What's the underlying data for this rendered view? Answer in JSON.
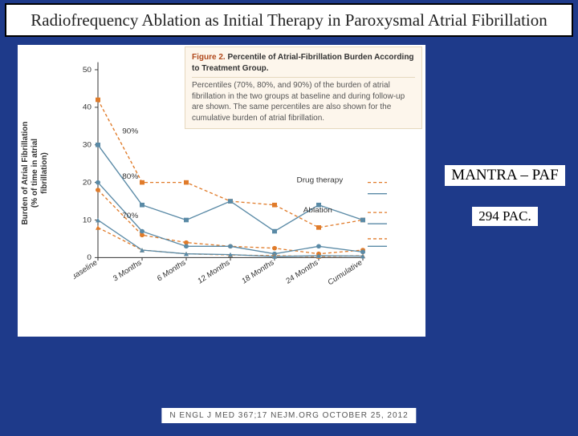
{
  "title": "Radiofrequency Ablation as Initial Therapy in Paroxysmal Atrial Fibrillation",
  "caption": {
    "fig_label": "Figure 2.",
    "fig_title": "Percentile of Atrial-Fibrillation Burden According to Treatment Group.",
    "body": "Percentiles (70%, 80%, and 90%) of the burden of atrial fibrillation in the two groups at baseline and during follow-up are shown. The same percentiles are also shown for the cumulative burden of atrial fibrillation."
  },
  "side": {
    "label1": "MANTRA – PAF",
    "label2": "294 PAC."
  },
  "citation": "N ENGL J MED 367;17   NEJM.ORG   OCTOBER 25, 2012",
  "chart": {
    "type": "line",
    "y_label": "Burden of Atrial Fibrillation\n(% of time in atrial fibrillation)",
    "y_ticks": [
      0,
      10,
      20,
      30,
      40,
      50
    ],
    "ylim": [
      0,
      52
    ],
    "x_categories": [
      "Baseline",
      "3 Months",
      "6 Months",
      "12 Months",
      "18 Months",
      "24 Months",
      "Cumulative"
    ],
    "background_color": "#ffffff",
    "axis_color": "#333333",
    "text_color": "#333333",
    "tick_fontsize": 10,
    "label_fontsize": 10,
    "marker_size": 6,
    "line_width": 1.4,
    "palette": {
      "drug": "#e07b2a",
      "ablation": "#5a8aa6"
    },
    "percentile_annotations": [
      {
        "text": "90%",
        "x_idx": 0.55,
        "y": 33
      },
      {
        "text": "80%",
        "x_idx": 0.55,
        "y": 21
      },
      {
        "text": "70%",
        "x_idx": 0.55,
        "y": 10.5
      }
    ],
    "legend_items": [
      {
        "label": "Drug therapy",
        "x_idx": 4.5,
        "y": 20,
        "color": "#e07b2a",
        "marker": "square"
      },
      {
        "label": "Ablation",
        "x_idx": 4.65,
        "y": 12,
        "color": "#5a8aa6",
        "marker": "square"
      }
    ],
    "series": [
      {
        "name": "Drug 90%",
        "group": "drug",
        "percentile": 90,
        "dash": "4 3",
        "color": "#e07b2a",
        "marker": "square",
        "values": [
          42,
          20,
          20,
          15,
          14,
          8,
          10
        ]
      },
      {
        "name": "Ablation 90%",
        "group": "ablation",
        "percentile": 90,
        "dash": "none",
        "color": "#5a8aa6",
        "marker": "square",
        "values": [
          30,
          14,
          10,
          15,
          7,
          14,
          10
        ]
      },
      {
        "name": "Drug 80%",
        "group": "drug",
        "percentile": 80,
        "dash": "4 3",
        "color": "#e07b2a",
        "marker": "circle",
        "values": [
          18,
          6,
          4,
          3,
          2.5,
          1,
          2
        ]
      },
      {
        "name": "Ablation 80%",
        "group": "ablation",
        "percentile": 80,
        "dash": "none",
        "color": "#5a8aa6",
        "marker": "circle",
        "values": [
          20,
          7,
          3,
          3,
          1,
          3,
          1.5
        ]
      },
      {
        "name": "Drug 70%",
        "group": "drug",
        "percentile": 70,
        "dash": "4 3",
        "color": "#e07b2a",
        "marker": "triangle",
        "values": [
          8,
          2,
          1,
          0.7,
          0.5,
          0.3,
          0.5
        ]
      },
      {
        "name": "Ablation 70%",
        "group": "ablation",
        "percentile": 70,
        "dash": "none",
        "color": "#5a8aa6",
        "marker": "triangle",
        "values": [
          10,
          2,
          1,
          0.8,
          0.3,
          0.5,
          0.4
        ]
      }
    ]
  }
}
